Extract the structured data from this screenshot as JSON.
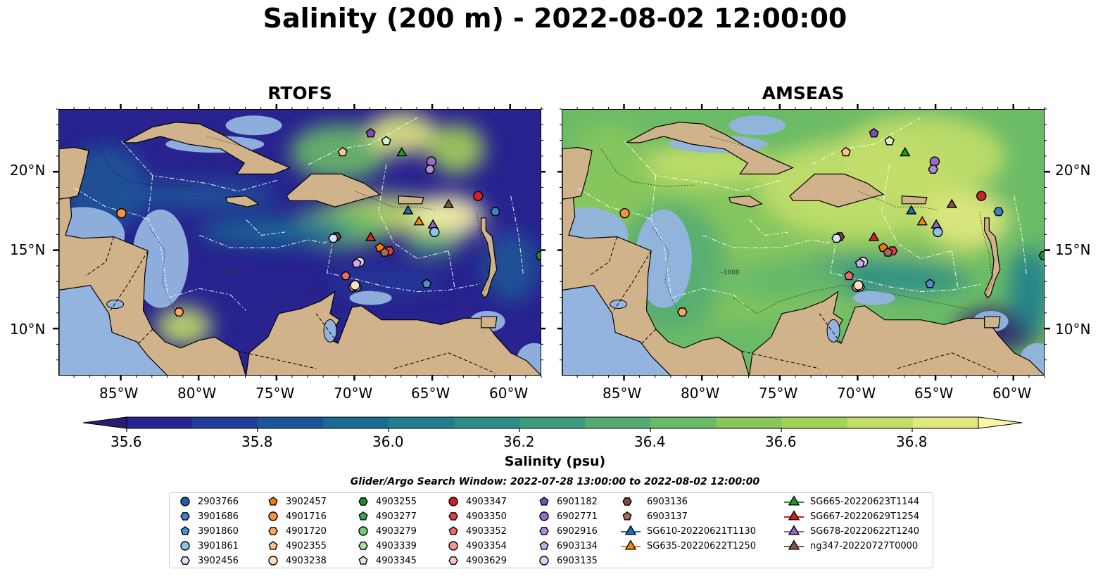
{
  "title": "Salinity (200 m) - 2022-08-02 12:00:00",
  "panels": [
    {
      "name": "RTOFS"
    },
    {
      "name": "AMSEAS"
    }
  ],
  "axes": {
    "lat_labels": [
      "20°N",
      "15°N",
      "10°N"
    ],
    "lon_labels": [
      "85°W",
      "80°W",
      "75°W",
      "70°W",
      "65°W",
      "60°W"
    ]
  },
  "colorbar": {
    "label": "Salinity (psu)",
    "tick_labels": [
      "35.6",
      "35.8",
      "36.0",
      "36.2",
      "36.4",
      "36.6",
      "36.8"
    ],
    "colors": [
      "#2b1a6e",
      "#28238f",
      "#223c9a",
      "#1c5597",
      "#1a6b94",
      "#1f7f8d",
      "#2b8e86",
      "#3d9c7d",
      "#54ac73",
      "#6bbb66",
      "#87c75c",
      "#a4d35a",
      "#c3de6a",
      "#e1e87f",
      "#fbf6a6"
    ]
  },
  "search_window": "Glider/Argo Search Window: 2022-07-28 13:00:00 to 2022-08-02 12:00:00",
  "legend": {
    "columns": [
      [
        {
          "label": "2903766",
          "marker": "circle",
          "color": "#1f5fa8"
        },
        {
          "label": "3901686",
          "marker": "hexagon",
          "color": "#3b82c4"
        },
        {
          "label": "3901860",
          "marker": "pentagon",
          "color": "#4a90d0"
        },
        {
          "label": "3901861",
          "marker": "circle",
          "color": "#8ec2e6"
        },
        {
          "label": "3902456",
          "marker": "hexagon",
          "color": "#cfe6f6"
        }
      ],
      [
        {
          "label": "3902457",
          "marker": "pentagon",
          "color": "#f27a0c"
        },
        {
          "label": "4901716",
          "marker": "circle",
          "color": "#f7923a"
        },
        {
          "label": "4901720",
          "marker": "hexagon",
          "color": "#f9a860"
        },
        {
          "label": "4902355",
          "marker": "pentagon",
          "color": "#fbc48e"
        },
        {
          "label": "4903238",
          "marker": "circle",
          "color": "#fde0c0"
        }
      ],
      [
        {
          "label": "4903255",
          "marker": "hexagon",
          "color": "#1e8c2c"
        },
        {
          "label": "4903277",
          "marker": "pentagon",
          "color": "#3aa84a"
        },
        {
          "label": "4903279",
          "marker": "circle",
          "color": "#72cc72"
        },
        {
          "label": "4903339",
          "marker": "hexagon",
          "color": "#a6e19e"
        },
        {
          "label": "4903345",
          "marker": "pentagon",
          "color": "#d6f3cc"
        }
      ],
      [
        {
          "label": "4903347",
          "marker": "circle",
          "color": "#d21f1f"
        },
        {
          "label": "4903350",
          "marker": "hexagon",
          "color": "#e0413f"
        },
        {
          "label": "4903352",
          "marker": "pentagon",
          "color": "#ec6b67"
        },
        {
          "label": "4903354",
          "marker": "circle",
          "color": "#f39a95"
        },
        {
          "label": "4903629",
          "marker": "hexagon",
          "color": "#f9c9c3"
        }
      ],
      [
        {
          "label": "6901182",
          "marker": "pentagon",
          "color": "#7d4fb5"
        },
        {
          "label": "6902771",
          "marker": "circle",
          "color": "#9a6cc8"
        },
        {
          "label": "6902916",
          "marker": "hexagon",
          "color": "#b08ad6"
        },
        {
          "label": "6903134",
          "marker": "pentagon",
          "color": "#c9aae6"
        },
        {
          "label": "6903135",
          "marker": "circle",
          "color": "#e3cdf3"
        }
      ],
      [
        {
          "label": "6903136",
          "marker": "hexagon",
          "color": "#7a4a3a"
        },
        {
          "label": "6903137",
          "marker": "pentagon",
          "color": "#a46b58"
        },
        {
          "label": "SG610-20220621T1130",
          "marker": "triangle-line",
          "color": "#1f6fb4"
        },
        {
          "label": "SG635-20220622T1250",
          "marker": "triangle-line",
          "color": "#f28a10"
        }
      ],
      [
        {
          "label": "SG665-20220623T1144",
          "marker": "triangle-line",
          "color": "#1e9a2c"
        },
        {
          "label": "SG667-20220629T1254",
          "marker": "triangle-line",
          "color": "#d62222"
        },
        {
          "label": "SG678-20220622T1240",
          "marker": "triangle-line",
          "color": "#9064c4"
        },
        {
          "label": "ng347-20220727T0000",
          "marker": "triangle-line",
          "color": "#845444"
        }
      ]
    ]
  },
  "markers": [
    {
      "id": "4901716",
      "marker": "circle",
      "color": "#f7923a",
      "lon": -85.0,
      "lat": 17.4
    },
    {
      "id": "4901720",
      "marker": "hexagon",
      "color": "#f9a860",
      "lon": -81.3,
      "lat": 11.1
    },
    {
      "id": "6901182",
      "marker": "pentagon",
      "color": "#7d4fb5",
      "lon": -69.0,
      "lat": 22.5
    },
    {
      "id": "4903345",
      "marker": "pentagon",
      "color": "#d6f3cc",
      "lon": -68.0,
      "lat": 22.0
    },
    {
      "id": "4902355",
      "marker": "pentagon",
      "color": "#fbc48e",
      "lon": -70.8,
      "lat": 21.3
    },
    {
      "id": "SG665-20220623T1144",
      "marker": "triangle",
      "color": "#1e9a2c",
      "lon": -67.0,
      "lat": 21.3
    },
    {
      "id": "6902771",
      "marker": "circle",
      "color": "#9a6cc8",
      "lon": -65.1,
      "lat": 20.7
    },
    {
      "id": "6902916",
      "marker": "hexagon",
      "color": "#b08ad6",
      "lon": -65.2,
      "lat": 20.2
    },
    {
      "id": "4903347",
      "marker": "circle",
      "color": "#d21f1f",
      "lon": -62.1,
      "lat": 18.5
    },
    {
      "id": "ng347-20220727T0000",
      "marker": "triangle",
      "color": "#845444",
      "lon": -64.0,
      "lat": 18.0
    },
    {
      "id": "3901686",
      "marker": "hexagon",
      "color": "#3b82c4",
      "lon": -61.0,
      "lat": 17.5
    },
    {
      "id": "SG610-20220621T1130",
      "marker": "triangle",
      "color": "#1f6fb4",
      "lon": -66.6,
      "lat": 17.6
    },
    {
      "id": "SG635-20220622T1250",
      "marker": "triangle",
      "color": "#f28a10",
      "lon": -65.9,
      "lat": 16.9
    },
    {
      "id": "SG678-20220622T1240",
      "marker": "triangle",
      "color": "#9064c4",
      "lon": -65.0,
      "lat": 16.7
    },
    {
      "id": "3901861",
      "marker": "circle",
      "color": "#8ec2e6",
      "lon": -64.9,
      "lat": 16.2
    },
    {
      "id": "SG667-20220629T1254",
      "marker": "triangle",
      "color": "#d62222",
      "lon": -69.0,
      "lat": 15.9
    },
    {
      "id": "6903136",
      "marker": "hexagon",
      "color": "#7a4a3a",
      "lon": -71.2,
      "lat": 15.9
    },
    {
      "id": "3902456",
      "marker": "hexagon",
      "color": "#cfe6f6",
      "lon": -71.4,
      "lat": 15.8
    },
    {
      "id": "3902457",
      "marker": "pentagon",
      "color": "#f27a0c",
      "lon": -68.4,
      "lat": 15.2
    },
    {
      "id": "4903350",
      "marker": "hexagon",
      "color": "#e0413f",
      "lon": -67.8,
      "lat": 15.0
    },
    {
      "id": "6903137",
      "marker": "pentagon",
      "color": "#a46b58",
      "lon": -68.1,
      "lat": 14.9
    },
    {
      "id": "6903135",
      "marker": "circle",
      "color": "#e3cdf3",
      "lon": -69.7,
      "lat": 14.3
    },
    {
      "id": "6903134",
      "marker": "pentagon",
      "color": "#c9aae6",
      "lon": -69.9,
      "lat": 14.2
    },
    {
      "id": "4903339",
      "marker": "hexagon",
      "color": "#a6e19e",
      "lon": -57.5,
      "lat": 14.7
    },
    {
      "id": "4903255",
      "marker": "hexagon",
      "color": "#1e8c2c",
      "lon": -58.1,
      "lat": 14.7
    },
    {
      "id": "4903352",
      "marker": "pentagon",
      "color": "#ec6b67",
      "lon": -70.6,
      "lat": 13.4
    },
    {
      "id": "4903354",
      "marker": "circle",
      "color": "#f39a95",
      "lon": -70.1,
      "lat": 12.7
    },
    {
      "id": "4903629",
      "marker": "hexagon",
      "color": "#f9c9c3",
      "lon": -69.9,
      "lat": 12.7
    },
    {
      "id": "3901860",
      "marker": "pentagon",
      "color": "#4a90d0",
      "lon": -65.4,
      "lat": 12.9
    },
    {
      "id": "4903238",
      "marker": "circle",
      "color": "#fde0c0",
      "lon": -70.0,
      "lat": 12.8
    }
  ]
}
